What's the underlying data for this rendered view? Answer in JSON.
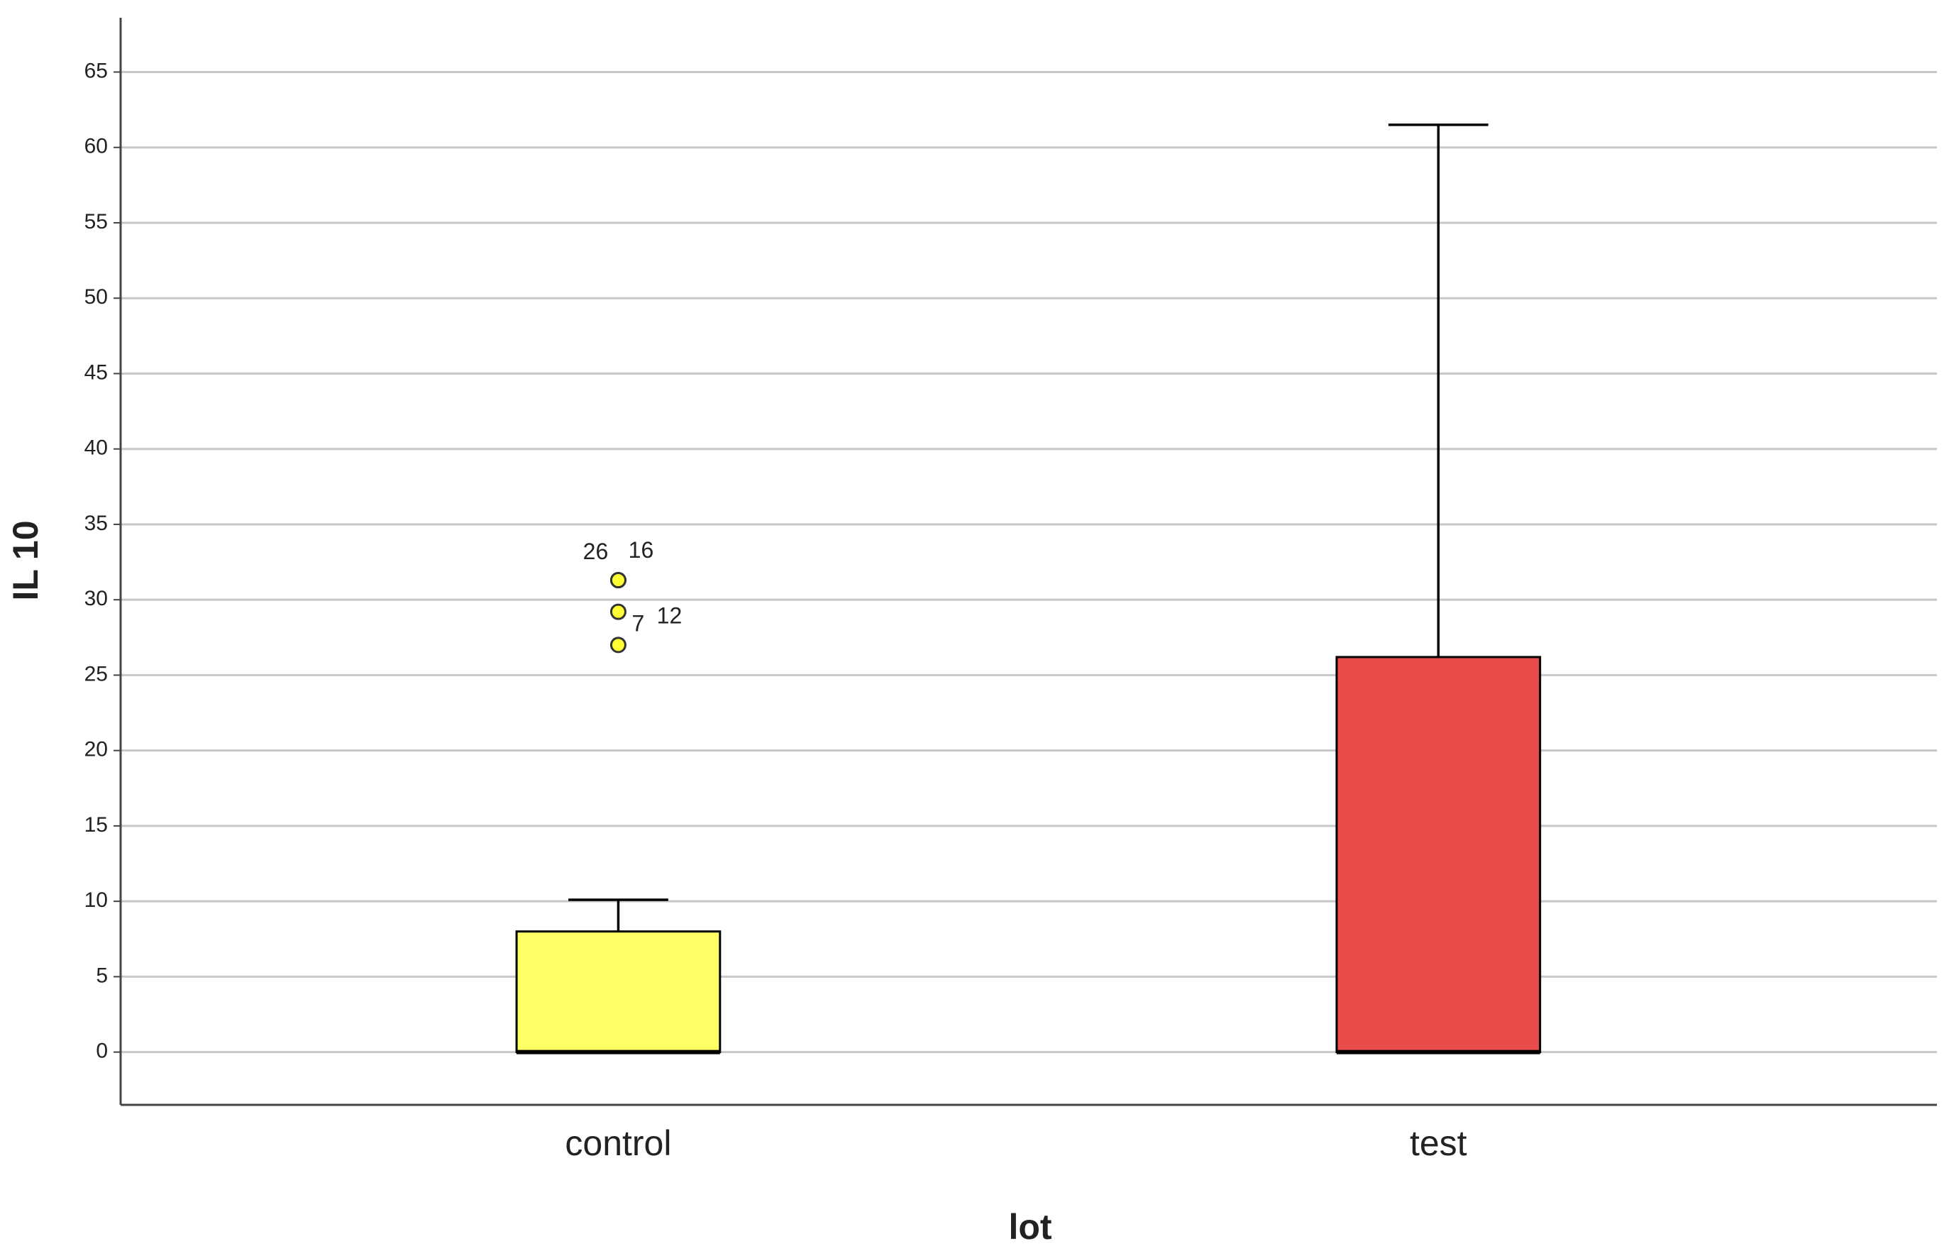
{
  "chart_data": {
    "type": "box",
    "x_label": "lot",
    "y_label": "IL 10",
    "categories": [
      "control",
      "test"
    ],
    "boxes": [
      {
        "min": 0,
        "q1": 0,
        "median": 0,
        "q3": 8,
        "max": 10.1,
        "color": "#ffff66",
        "outliers": [
          31.3,
          31.3,
          29.2,
          27
        ],
        "outlier_labels": [
          "26",
          "16",
          "12",
          "7"
        ]
      },
      {
        "min": 0,
        "q1": 0,
        "median": 0,
        "q3": 26.2,
        "max": 61.5,
        "color": "#ea4b4b",
        "outliers": [],
        "outlier_labels": []
      }
    ],
    "ylim": [
      -3.5,
      68.6
    ],
    "yticks": [
      0,
      5,
      10,
      15,
      20,
      25,
      30,
      35,
      40,
      45,
      50,
      55,
      60,
      65
    ],
    "grid": true
  }
}
